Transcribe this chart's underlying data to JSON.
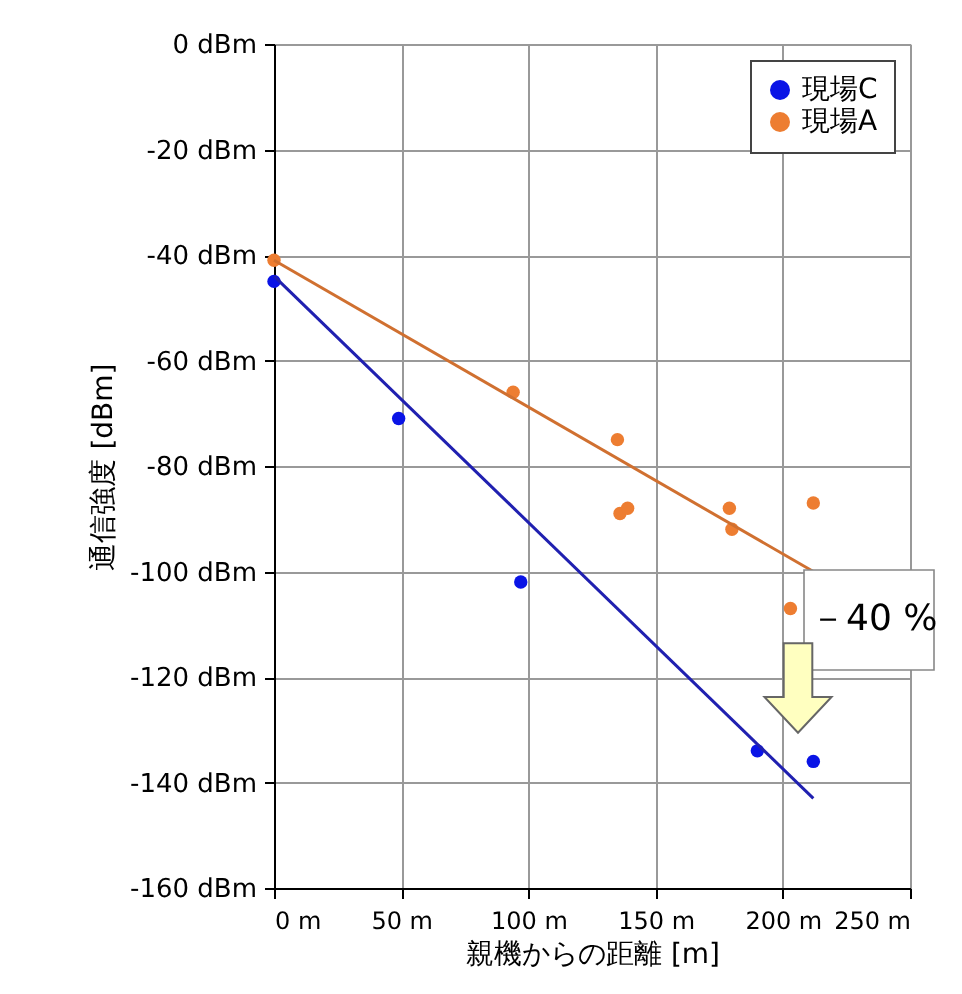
{
  "chart_data": {
    "type": "scatter",
    "xlabel": "親機からの距離 [m]",
    "ylabel": "通信強度 [dBm]",
    "xlim": [
      0,
      250
    ],
    "ylim": [
      -160,
      0
    ],
    "xticks": [
      {
        "value": 0,
        "label": "0 m"
      },
      {
        "value": 50,
        "label": "50 m"
      },
      {
        "value": 100,
        "label": "100 m"
      },
      {
        "value": 150,
        "label": "150 m"
      },
      {
        "value": 200,
        "label": "200 m"
      },
      {
        "value": 250,
        "label": "250 m"
      }
    ],
    "yticks": [
      {
        "value": 0,
        "label": "0 dBm"
      },
      {
        "value": -20,
        "label": "-20 dBm"
      },
      {
        "value": -40,
        "label": "-40 dBm"
      },
      {
        "value": -60,
        "label": "-60 dBm"
      },
      {
        "value": -80,
        "label": "-80 dBm"
      },
      {
        "value": -100,
        "label": "-100 dBm"
      },
      {
        "value": -120,
        "label": "-120 dBm"
      },
      {
        "value": -140,
        "label": "-140 dBm"
      },
      {
        "value": -160,
        "label": "-160 dBm"
      }
    ],
    "grid": true,
    "legend": "top right",
    "marker": "circle",
    "annotations": [
      "－40 %"
    ],
    "series": [
      {
        "name": "現場C",
        "color": "#0a14e6",
        "x": [
          0,
          49,
          97,
          190,
          212
        ],
        "values": [
          -45,
          -71,
          -102,
          -134,
          -136
        ]
      },
      {
        "name": "現場A",
        "color": "#ed7d31",
        "x": [
          0,
          94,
          135,
          136,
          139,
          179,
          180,
          203,
          212
        ],
        "values": [
          -41,
          -66,
          -75,
          -89,
          -88,
          -88,
          -92,
          -107,
          -87
        ]
      },
      {
        "type": "line",
        "color": "#2020b0",
        "line_style": "solid",
        "marker": "none",
        "x": [
          0,
          212
        ],
        "values": [
          -44,
          -143
        ]
      },
      {
        "type": "line",
        "color": "#d07030",
        "line_style": "solid",
        "marker": "none",
        "x": [
          0,
          212
        ],
        "values": [
          -41,
          -100
        ]
      }
    ]
  }
}
